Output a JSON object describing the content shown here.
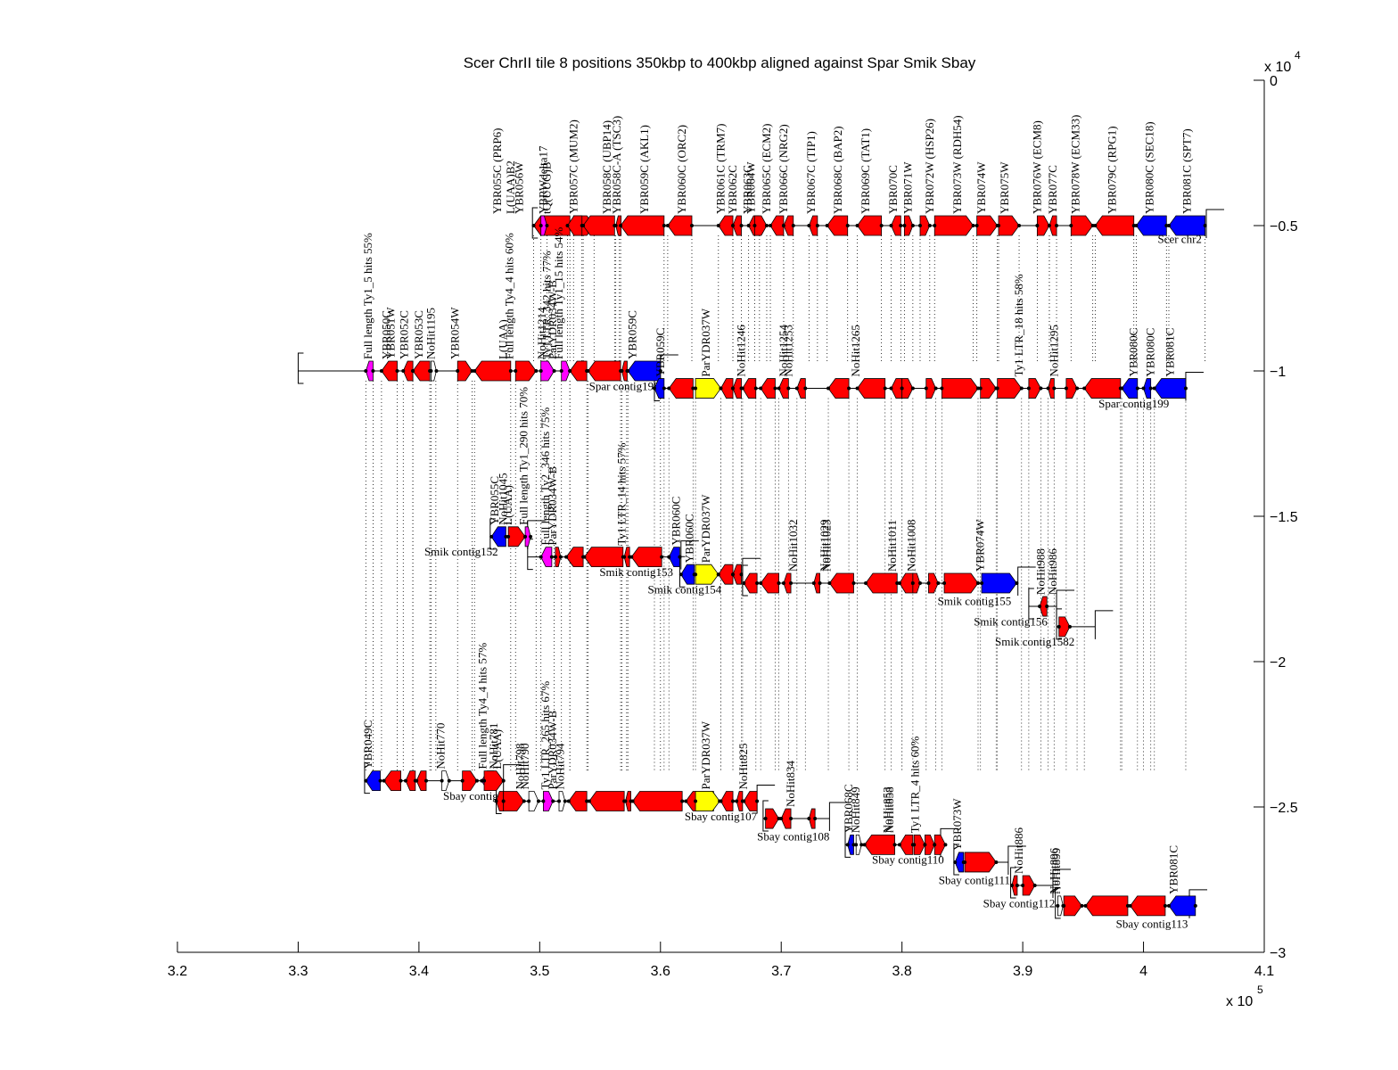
{
  "chart_data": {
    "type": "diagram-genome-alignment",
    "title": "Scer ChrII tile 8 positions 350kbp to 400kbp aligned against Spar Smik Sbay",
    "xlabel": "",
    "ylabel": "",
    "x_multiplier": "x 10^5",
    "y_multiplier": "x 10^4",
    "xlim": [
      320000,
      410000
    ],
    "ylim": [
      -30000,
      0
    ],
    "x_ticks": [
      3.2,
      3.3,
      3.4,
      3.5,
      3.6,
      3.7,
      3.8,
      3.9,
      4,
      4.1
    ],
    "x_tick_labels": [
      "3.2",
      "3.3",
      "3.4",
      "3.5",
      "3.6",
      "3.7",
      "3.8",
      "3.9",
      "4",
      "4.1"
    ],
    "y_ticks": [
      0,
      -0.5,
      -1,
      -1.5,
      -2,
      -2.5,
      -3
    ],
    "y_tick_labels": [
      "0",
      "−0.5",
      "−1",
      "−1.5",
      "−2",
      "−2.5",
      "−3"
    ],
    "y_axis_side": "right",
    "grid": false,
    "colors": {
      "red": "#ff0000",
      "blue": "#0000ff",
      "yellow": "#ffff00",
      "magenta": "#ff00ff",
      "line": "#000000"
    },
    "tracks": [
      {
        "name": "Scer chr2",
        "y": -5000,
        "start": 349500,
        "end": 405200,
        "genes": [
          {
            "label": "YBR055C (PRP6)",
            "start": 349500,
            "end": 352500,
            "strand": "-",
            "color": "red"
          },
          {
            "label": "L(UAA)B2",
            "start": 352600,
            "end": 352800,
            "strand": "-",
            "color": "red"
          },
          {
            "label": "YBR056W",
            "start": 352900,
            "end": 354600,
            "strand": "+",
            "color": "red"
          },
          {
            "label": "YBR056W-A",
            "start": 350000,
            "end": 350000,
            "strand": "+",
            "color": "magenta",
            "hidden": true
          },
          {
            "label": "YBRWdelta17",
            "start": 350100,
            "end": 350600,
            "strand": "+",
            "color": "magenta"
          },
          {
            "label": "tQ(UUG)B",
            "start": 350700,
            "end": 350900,
            "strand": "+",
            "color": "red"
          },
          {
            "label": "YBR057C (MUM2)",
            "start": 352300,
            "end": 353600,
            "strand": "-",
            "color": "red"
          },
          {
            "label": "YBR058C (UBP14)",
            "start": 353700,
            "end": 356100,
            "strand": "-",
            "color": "red"
          },
          {
            "label": "YBR058C-A (TSC3)",
            "start": 356200,
            "end": 356600,
            "strand": "-",
            "color": "red"
          },
          {
            "label": "YBR059C (AKL1)",
            "start": 356700,
            "end": 360400,
            "strand": "-",
            "color": "red"
          },
          {
            "label": "YBR060C (ORC2)",
            "start": 360800,
            "end": 362800,
            "strand": "-",
            "color": "red"
          }
        ]
      }
    ],
    "gene_labels_scer": [
      "YBR055C (PRP6)",
      "L(UAA)B2",
      "YBR056W",
      "YBRWdelta17",
      "tQ(UUG)B",
      "YBR057C (MUM2)",
      "YBR058C (UBP14)",
      "YBR058C-A (TSC3)",
      "YBR059C (AKL1)",
      "YBR060C (ORC2)",
      "YBR061C (TRM7)",
      "YBR062C",
      "YBR063C",
      "YBR064W",
      "YBR065C (ECM2)",
      "YBR066C (NRG2)",
      "YBR067C (TIP1)",
      "YBR068C (BAP2)",
      "YBR069C (TAT1)",
      "YBR070C",
      "YBR071W",
      "YBR072W (HSP26)",
      "YBR073W (RDH54)",
      "YBR074W",
      "YBR075W",
      "YBR076W (ECM8)",
      "YBR077C",
      "YBR078W (ECM33)",
      "YBR079C (RPG1)",
      "YBR080C (SEC18)",
      "YBR081C (SPT7)"
    ],
    "contig_labels": [
      "Scer chr2",
      "Spar contig198",
      "Spar contig199",
      "Smik contig152",
      "Smik contig153",
      "Smik contig154",
      "Smik contig155",
      "Smik contig156",
      "Smik contig1582",
      "Sbay contig105",
      "Sbay contig107",
      "Sbay contig108",
      "Sbay contig110",
      "Sbay contig111",
      "Sbay contig112",
      "Sbay contig113"
    ],
    "feature_labels": [
      {
        "text": "YBR055C (PRP6)",
        "x": 346500,
        "y": -5000,
        "row": "scer"
      },
      {
        "text": "L(UAA)B2",
        "x": 347600,
        "y": -5000,
        "row": "scer"
      },
      {
        "text": "YBR056W",
        "x": 348300,
        "y": -5000,
        "row": "scer"
      },
      {
        "text": "YBRWdelta17",
        "x": 350300,
        "y": -5000,
        "row": "scer"
      },
      {
        "text": "tQ(UUG)B",
        "x": 350600,
        "y": -5000,
        "row": "scer"
      },
      {
        "text": "YBR057C (MUM2)",
        "x": 352800,
        "y": -5000,
        "row": "scer"
      },
      {
        "text": "YBR058C (UBP14)",
        "x": 355600,
        "y": -5000,
        "row": "scer"
      },
      {
        "text": "YBR058C-A (TSC3)",
        "x": 356400,
        "y": -5000,
        "row": "scer"
      },
      {
        "text": "YBR059C (AKL1)",
        "x": 358700,
        "y": -5000,
        "row": "scer"
      },
      {
        "text": "YBR060C (ORC2)",
        "x": 361800,
        "y": -5000,
        "row": "scer"
      },
      {
        "text": "YBR061C (TRM7)",
        "x": 365000,
        "y": -5000,
        "row": "scer"
      },
      {
        "text": "YBR062C",
        "x": 366000,
        "y": -5000,
        "row": "scer"
      },
      {
        "text": "YBR063C",
        "x": 367200,
        "y": -5000,
        "row": "scer"
      },
      {
        "text": "YBR064W",
        "x": 367500,
        "y": -5000,
        "row": "scer"
      },
      {
        "text": "YBR065C (ECM2)",
        "x": 368800,
        "y": -5000,
        "row": "scer"
      },
      {
        "text": "YBR066C (NRG2)",
        "x": 370200,
        "y": -5000,
        "row": "scer"
      },
      {
        "text": "YBR067C (TIP1)",
        "x": 372500,
        "y": -5000,
        "row": "scer"
      },
      {
        "text": "YBR068C (BAP2)",
        "x": 374700,
        "y": -5000,
        "row": "scer"
      },
      {
        "text": "YBR069C (TAT1)",
        "x": 377000,
        "y": -5000,
        "row": "scer"
      },
      {
        "text": "YBR070C",
        "x": 379300,
        "y": -5000,
        "row": "scer"
      },
      {
        "text": "YBR071W",
        "x": 380500,
        "y": -5000,
        "row": "scer"
      },
      {
        "text": "YBR072W (HSP26)",
        "x": 382300,
        "y": -5000,
        "row": "scer"
      },
      {
        "text": "YBR073W (RDH54)",
        "x": 384600,
        "y": -5000,
        "row": "scer"
      },
      {
        "text": "YBR074W",
        "x": 386600,
        "y": -5000,
        "row": "scer"
      },
      {
        "text": "YBR075W",
        "x": 388500,
        "y": -5000,
        "row": "scer"
      },
      {
        "text": "YBR076W (ECM8)",
        "x": 391200,
        "y": -5000,
        "row": "scer"
      },
      {
        "text": "YBR077C",
        "x": 392500,
        "y": -5000,
        "row": "scer"
      },
      {
        "text": "YBR078W (ECM33)",
        "x": 394400,
        "y": -5000,
        "row": "scer"
      },
      {
        "text": "YBR079C (RPG1)",
        "x": 397400,
        "y": -5000,
        "row": "scer"
      },
      {
        "text": "YBR080C (SEC18)",
        "x": 400500,
        "y": -5000,
        "row": "scer"
      },
      {
        "text": "YBR081C (SPT7)",
        "x": 403600,
        "y": -5000,
        "row": "scer"
      },
      {
        "text": "Full length Ty1_5 hits 55%",
        "x": 335800,
        "y": -10000,
        "row": "spar"
      },
      {
        "text": "YBR050C",
        "x": 337300,
        "y": -10000,
        "row": "spar"
      },
      {
        "text": "YBR051W",
        "x": 337700,
        "y": -10000,
        "row": "spar"
      },
      {
        "text": "YBR052C",
        "x": 338800,
        "y": -10000,
        "row": "spar"
      },
      {
        "text": "YBR053C",
        "x": 340000,
        "y": -10000,
        "row": "spar"
      },
      {
        "text": "NoHit1195",
        "x": 341000,
        "y": -10000,
        "row": "spar"
      },
      {
        "text": "YBR054W",
        "x": 343000,
        "y": -10000,
        "row": "spar"
      },
      {
        "text": "L(UAA)",
        "x": 347000,
        "y": -10000,
        "row": "spar"
      },
      {
        "text": "Full length Ty4_4 hits 60%",
        "x": 347500,
        "y": -10000,
        "row": "spar"
      },
      {
        "text": "NoHit1214",
        "x": 350200,
        "y": -10000,
        "row": "spar"
      },
      {
        "text": "Ty1 LTR_342 hits 77%",
        "x": 350600,
        "y": -10000,
        "row": "spar"
      },
      {
        "text": "ParYDR034W-B",
        "x": 351100,
        "y": -10000,
        "row": "spar"
      },
      {
        "text": "Full length Ty1_15 hits 54%",
        "x": 351600,
        "y": -10000,
        "row": "spar"
      },
      {
        "text": "YBR059C",
        "x": 357700,
        "y": -10000,
        "row": "spar"
      },
      {
        "text": "YBR059C",
        "x": 360000,
        "y": -10600,
        "row": "spar"
      },
      {
        "text": "ParYDR037W",
        "x": 363800,
        "y": -10600,
        "row": "spar"
      },
      {
        "text": "NoHit1246",
        "x": 366700,
        "y": -10600,
        "row": "spar"
      },
      {
        "text": "NoHit1254",
        "x": 370200,
        "y": -10600,
        "row": "spar"
      },
      {
        "text": "NoHit1253",
        "x": 370600,
        "y": -10600,
        "row": "spar"
      },
      {
        "text": "NoHit1265",
        "x": 376200,
        "y": -10600,
        "row": "spar"
      },
      {
        "text": "Ty1 LTR_18 hits 58%",
        "x": 389700,
        "y": -10600,
        "row": "spar"
      },
      {
        "text": "NoHit1295",
        "x": 392600,
        "y": -10600,
        "row": "spar"
      },
      {
        "text": "YBR080C",
        "x": 399200,
        "y": -10600,
        "row": "spar"
      },
      {
        "text": "YBR080C",
        "x": 400600,
        "y": -10600,
        "row": "spar"
      },
      {
        "text": "YBR081C",
        "x": 402200,
        "y": -10600,
        "row": "spar"
      },
      {
        "text": "YBR055C",
        "x": 346300,
        "y": -15700,
        "row": "smik"
      },
      {
        "text": "NoHit1045",
        "x": 347000,
        "y": -15700,
        "row": "smik"
      },
      {
        "text": "L(UAA)",
        "x": 347400,
        "y": -15700,
        "row": "smik"
      },
      {
        "text": "Full length Ty1_290 hits 70%",
        "x": 348700,
        "y": -15700,
        "row": "smik"
      },
      {
        "text": "Full length Ty2_346 hits 75%",
        "x": 350500,
        "y": -16400,
        "row": "smik"
      },
      {
        "text": "ParYDR034W-B",
        "x": 351100,
        "y": -16400,
        "row": "smik"
      },
      {
        "text": "Ty1 LTR_14 hits 57%",
        "x": 356800,
        "y": -16400,
        "row": "smik"
      },
      {
        "text": "YBR060C",
        "x": 361300,
        "y": -16400,
        "row": "smik"
      },
      {
        "text": "YBR060C",
        "x": 362400,
        "y": -17000,
        "row": "smik"
      },
      {
        "text": "ParYDR037W",
        "x": 363800,
        "y": -17000,
        "row": "smik"
      },
      {
        "text": "NoHit1032",
        "x": 371000,
        "y": -17300,
        "row": "smik"
      },
      {
        "text": "NoHit1029",
        "x": 373600,
        "y": -17300,
        "row": "smik"
      },
      {
        "text": "NoHit1023",
        "x": 373800,
        "y": -17300,
        "row": "smik"
      },
      {
        "text": "NoHit1011",
        "x": 379200,
        "y": -17300,
        "row": "smik"
      },
      {
        "text": "NoHit1008",
        "x": 380800,
        "y": -17300,
        "row": "smik"
      },
      {
        "text": "YBR074W",
        "x": 386500,
        "y": -17300,
        "row": "smik"
      },
      {
        "text": "NoHit988",
        "x": 391500,
        "y": -18100,
        "row": "smik"
      },
      {
        "text": "NoHit986",
        "x": 392500,
        "y": -18100,
        "row": "smik"
      },
      {
        "text": "YBR049C",
        "x": 335800,
        "y": -24100,
        "row": "sbay"
      },
      {
        "text": "NoHit770",
        "x": 341800,
        "y": -24100,
        "row": "sbay"
      },
      {
        "text": "Full length Ty4_4 hits 57%",
        "x": 345300,
        "y": -24100,
        "row": "sbay"
      },
      {
        "text": "NoHit781",
        "x": 346200,
        "y": -24100,
        "row": "sbay"
      },
      {
        "text": "L(UAA)",
        "x": 346500,
        "y": -24100,
        "row": "sbay"
      },
      {
        "text": "NoHit798",
        "x": 348400,
        "y": -24800,
        "row": "sbay"
      },
      {
        "text": "NoHit790",
        "x": 348800,
        "y": -24800,
        "row": "sbay"
      },
      {
        "text": "Ty1 LTR_265 hits 67%",
        "x": 350500,
        "y": -24800,
        "row": "sbay"
      },
      {
        "text": "ParYDR034W-B",
        "x": 351100,
        "y": -24800,
        "row": "sbay"
      },
      {
        "text": "NoHit794",
        "x": 351700,
        "y": -24800,
        "row": "sbay"
      },
      {
        "text": "ParYDR037W",
        "x": 363800,
        "y": -24800,
        "row": "sbay"
      },
      {
        "text": "NoHit825",
        "x": 366900,
        "y": -24800,
        "row": "sbay"
      },
      {
        "text": "NoHit834",
        "x": 370800,
        "y": -25400,
        "row": "sbay"
      },
      {
        "text": "YBR068C",
        "x": 375600,
        "y": -26300,
        "row": "sbay"
      },
      {
        "text": "NoHit849",
        "x": 376200,
        "y": -26300,
        "row": "sbay"
      },
      {
        "text": "NoHit853",
        "x": 378800,
        "y": -26300,
        "row": "sbay"
      },
      {
        "text": "NoHit858",
        "x": 379000,
        "y": -26300,
        "row": "sbay"
      },
      {
        "text": "Ty1 LTR_4 hits 60%",
        "x": 381100,
        "y": -26300,
        "row": "sbay"
      },
      {
        "text": "YBR073W",
        "x": 384600,
        "y": -26900,
        "row": "sbay"
      },
      {
        "text": "NoHit886",
        "x": 389700,
        "y": -27700,
        "row": "sbay"
      },
      {
        "text": "NoHit896",
        "x": 392600,
        "y": -28400,
        "row": "sbay"
      },
      {
        "text": "NoHit899",
        "x": 392800,
        "y": -28400,
        "row": "sbay"
      },
      {
        "text": "YBR081C",
        "x": 402500,
        "y": -28400,
        "row": "sbay"
      }
    ]
  }
}
